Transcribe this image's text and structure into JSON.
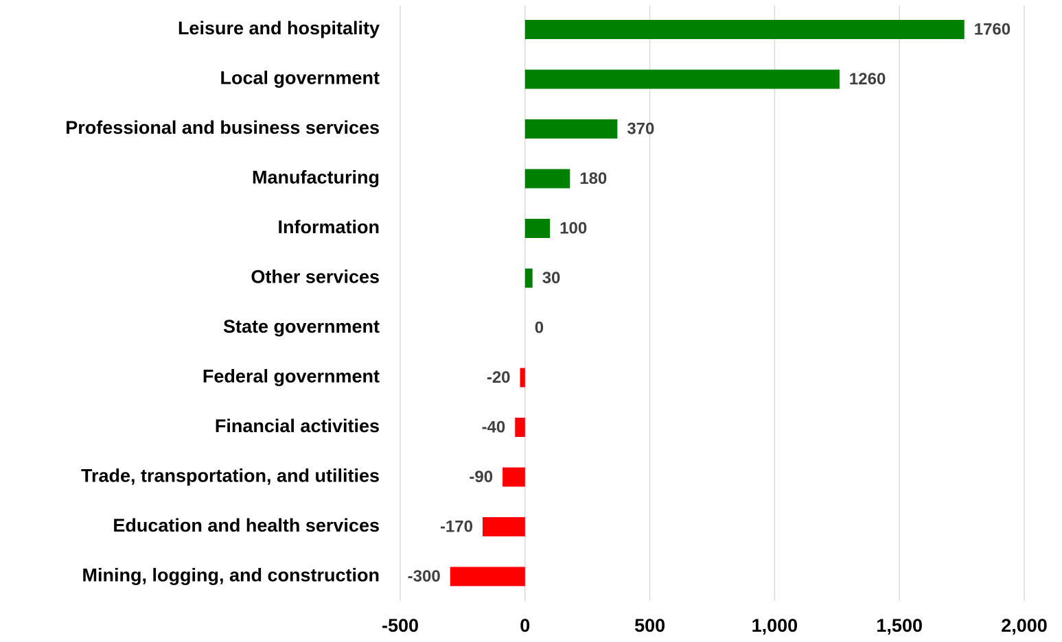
{
  "chart_data": {
    "type": "barh",
    "categories": [
      "Leisure and hospitality",
      "Local government",
      "Professional and business services",
      "Manufacturing",
      "Information",
      "Other services",
      "State government",
      "Federal government",
      "Financial activities",
      "Trade, transportation, and utilities",
      "Education and health services",
      "Mining, logging, and construction"
    ],
    "values": [
      1760,
      1260,
      370,
      180,
      100,
      30,
      0,
      -20,
      -40,
      -90,
      -170,
      -300
    ],
    "positive_color": "#008000",
    "negative_color": "#ff0000",
    "xlim": [
      -500,
      2000
    ],
    "xticks": [
      -500,
      0,
      500,
      {
        "value": 1000,
        "label": "1,000"
      },
      {
        "value": 1500,
        "label": "1,500"
      },
      {
        "value": 2000,
        "label": "2,000"
      }
    ],
    "grid": true
  }
}
